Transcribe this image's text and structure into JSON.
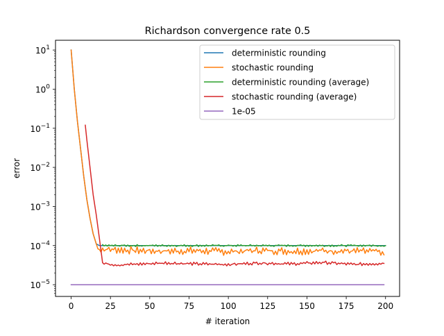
{
  "chart_data": {
    "type": "line",
    "title": "Richardson convergence rate 0.5",
    "xlabel": "# iteration",
    "ylabel": "error",
    "yscale": "log",
    "xlim": [
      -9.95,
      208.95
    ],
    "ylim_log10": [
      -5.3,
      1.25
    ],
    "xticks": [
      0,
      25,
      50,
      75,
      100,
      125,
      150,
      175,
      200
    ],
    "yticks_exp": [
      -5,
      -4,
      -3,
      -2,
      -1,
      0,
      1
    ],
    "legend_position": "upper-right",
    "grid": false,
    "colors": {
      "deterministic": "#1f77b4",
      "stochastic": "#ff7f0e",
      "det_avg": "#2ca02c",
      "sto_avg": "#d62728",
      "ref": "#9467bd"
    },
    "series": [
      {
        "name": "deterministic rounding",
        "color_key": "deterministic",
        "points": [
          [
            0,
            10
          ],
          [
            2,
            1.0
          ],
          [
            4,
            0.15
          ],
          [
            6,
            0.03
          ],
          [
            8,
            0.006
          ],
          [
            10,
            0.0015
          ],
          [
            12,
            0.0005
          ],
          [
            14,
            0.0002
          ],
          [
            16,
            0.00011
          ],
          [
            18,
            0.0001
          ],
          [
            200,
            0.0001
          ]
        ]
      },
      {
        "name": "stochastic rounding",
        "color_key": "stochastic",
        "points": [
          [
            0,
            10
          ],
          [
            2,
            1.0
          ],
          [
            4,
            0.15
          ],
          [
            6,
            0.03
          ],
          [
            8,
            0.006
          ],
          [
            10,
            0.0015
          ],
          [
            12,
            0.0005
          ],
          [
            14,
            0.0002
          ],
          [
            16,
            0.0001
          ],
          [
            18,
            8e-05
          ],
          [
            25,
            8e-05
          ],
          [
            40,
            7.5e-05
          ],
          [
            60,
            7.2e-05
          ],
          [
            80,
            7.4e-05
          ],
          [
            100,
            7e-05
          ],
          [
            120,
            7.5e-05
          ],
          [
            140,
            7.2e-05
          ],
          [
            160,
            7.4e-05
          ],
          [
            180,
            7.2e-05
          ],
          [
            198,
            7e-05
          ],
          [
            199,
            5.8e-05
          ]
        ],
        "noise": 0.12
      },
      {
        "name": "deterministic rounding (average)",
        "color_key": "det_avg",
        "points": [
          [
            20,
            0.0001
          ],
          [
            200,
            0.0001
          ]
        ],
        "noise": 0.03
      },
      {
        "name": "stochastic rounding (average)",
        "color_key": "sto_avg",
        "points": [
          [
            9,
            0.12
          ],
          [
            10,
            0.05
          ],
          [
            12,
            0.01
          ],
          [
            14,
            0.002
          ],
          [
            16,
            0.0006
          ],
          [
            18,
            0.00015
          ],
          [
            20,
            3.5e-05
          ],
          [
            30,
            3.2e-05
          ],
          [
            60,
            3.6e-05
          ],
          [
            80,
            3.4e-05
          ],
          [
            100,
            3.3e-05
          ],
          [
            120,
            3.6e-05
          ],
          [
            140,
            3.4e-05
          ],
          [
            160,
            3.7e-05
          ],
          [
            180,
            3.3e-05
          ],
          [
            199,
            3.5e-05
          ]
        ],
        "noise": 0.05
      },
      {
        "name": "1e-05",
        "color_key": "ref",
        "points": [
          [
            0,
            1e-05
          ],
          [
            199,
            1e-05
          ]
        ]
      }
    ]
  }
}
